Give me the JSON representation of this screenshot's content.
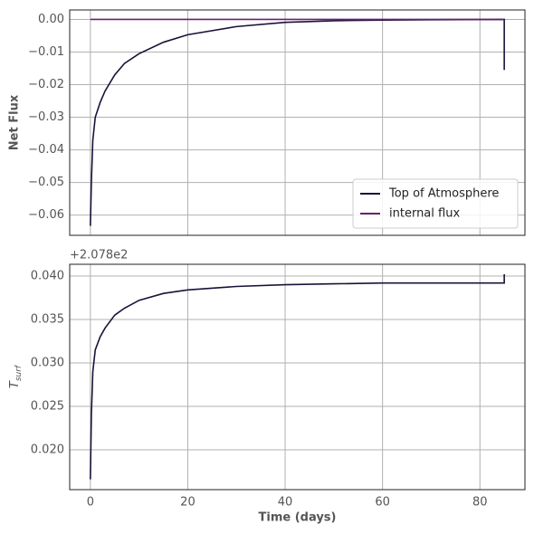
{
  "chart_data": [
    {
      "type": "line",
      "ylabel": "Net Flux",
      "ylim": [
        -0.0662,
        0.0029
      ],
      "yticks": [
        {
          "value": 0,
          "label": "0.00"
        },
        {
          "value": -0.01,
          "label": "−0.01"
        },
        {
          "value": -0.02,
          "label": "−0.02"
        },
        {
          "value": -0.03,
          "label": "−0.03"
        },
        {
          "value": -0.04,
          "label": "−0.04"
        },
        {
          "value": -0.05,
          "label": "−0.05"
        },
        {
          "value": -0.06,
          "label": "−0.06"
        }
      ],
      "grid": true,
      "legend": "lower right",
      "series": [
        {
          "name": "Top of Atmosphere",
          "color": "#1a1238",
          "x": [
            0,
            0.2,
            0.5,
            1,
            2,
            3,
            5,
            7,
            10,
            15,
            20,
            30,
            40,
            50,
            60,
            70,
            85,
            85
          ],
          "values": [
            -0.0633,
            -0.05,
            -0.037,
            -0.03,
            -0.0255,
            -0.022,
            -0.017,
            -0.0135,
            -0.0105,
            -0.007,
            -0.0047,
            -0.0022,
            -0.0009,
            -0.0004,
            -0.0002,
            -0.0001,
            0,
            -0.0155
          ]
        },
        {
          "name": "internal flux",
          "color": "#6a2070",
          "x": [
            0,
            85
          ],
          "values": [
            0,
            0
          ]
        }
      ]
    },
    {
      "type": "line",
      "ylabel": {
        "main": "T",
        "sub": "surf"
      },
      "xlabel": "Time (days)",
      "offset_text": "+2.078e2",
      "xlim": [
        -4.25,
        89.25
      ],
      "xticks": [
        0,
        20,
        40,
        60,
        80
      ],
      "ylim": [
        0.01542,
        0.04135
      ],
      "yticks": [
        {
          "value": 0.02,
          "label": "0.020"
        },
        {
          "value": 0.025,
          "label": "0.025"
        },
        {
          "value": 0.03,
          "label": "0.030"
        },
        {
          "value": 0.035,
          "label": "0.035"
        },
        {
          "value": 0.04,
          "label": "0.040"
        }
      ],
      "grid": true,
      "series": [
        {
          "color": "#1a1238",
          "x": [
            0,
            0.2,
            0.5,
            1,
            2,
            3,
            5,
            7,
            10,
            15,
            20,
            30,
            40,
            50,
            60,
            70,
            85,
            85
          ],
          "values": [
            0.0166,
            0.024,
            0.029,
            0.0315,
            0.033,
            0.034,
            0.0355,
            0.0363,
            0.0372,
            0.038,
            0.0384,
            0.0388,
            0.039,
            0.0391,
            0.0392,
            0.0392,
            0.0392,
            0.0402
          ]
        }
      ]
    }
  ]
}
